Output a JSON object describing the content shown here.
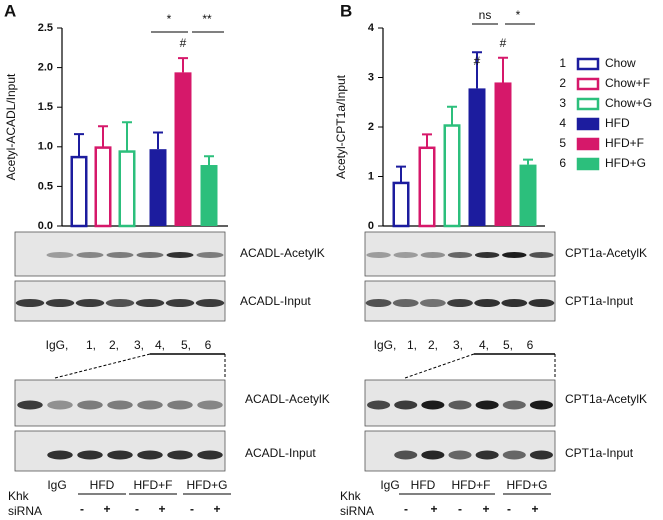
{
  "chart_data": [
    {
      "type": "bar",
      "panel": "A",
      "ylabel": "Acetyl-ACADL/Input",
      "ylim": [
        0,
        2.5
      ],
      "yticks": [
        {
          "value": 0,
          "label": "0.0"
        },
        0.5,
        {
          "value": 1,
          "label": "1.0"
        },
        1.5,
        {
          "value": 2,
          "label": "2.0"
        },
        2.5
      ],
      "values": [
        0.87,
        0.99,
        0.94,
        0.97,
        1.94,
        0.77
      ],
      "errors": [
        0.29,
        0.27,
        0.37,
        0.21,
        0.18,
        0.11
      ],
      "colors": [
        "#1c1c9e",
        "#d6186a",
        "#2cbf7c",
        "#1c1c9e",
        "#d6186a",
        "#2cbf7c"
      ],
      "filled": [
        false,
        false,
        false,
        true,
        true,
        true
      ],
      "annotations": [
        "*",
        "**",
        "#"
      ]
    },
    {
      "type": "bar",
      "panel": "B",
      "ylabel": "Acetyl-CPT1a/Input",
      "ylim": [
        0,
        4
      ],
      "yticks": [
        0,
        1,
        2,
        3,
        4
      ],
      "values": [
        0.87,
        1.58,
        2.03,
        2.78,
        2.9,
        1.24
      ],
      "errors": [
        0.33,
        0.27,
        0.38,
        0.73,
        0.5,
        0.1
      ],
      "colors": [
        "#1c1c9e",
        "#d6186a",
        "#2cbf7c",
        "#1c1c9e",
        "#d6186a",
        "#2cbf7c"
      ],
      "filled": [
        false,
        false,
        false,
        true,
        true,
        true
      ],
      "annotations": [
        "ns",
        "*",
        "#",
        "#"
      ],
      "legend_numbers": [
        "1",
        "2",
        "3",
        "4",
        "5",
        "6"
      ],
      "legend_names": [
        "Chow",
        "Chow+F",
        "Chow+G",
        "HFD",
        "HFD+F",
        "HFD+G"
      ]
    }
  ],
  "blots": {
    "A": {
      "top_labels": [
        "ACADL-AcetylK",
        "ACADL-Input"
      ],
      "lanes": [
        "IgG,",
        "1,",
        "2,",
        "3,",
        "4,",
        "5,",
        "6"
      ],
      "bottom_labels": [
        "ACADL-AcetylK",
        "ACADL-Input"
      ],
      "groups": [
        "IgG",
        "HFD",
        "HFD+F",
        "HFD+G"
      ],
      "rows": [
        "Khk",
        "siRNA"
      ],
      "signs": [
        "-",
        "+",
        "-",
        "+",
        "-",
        "+"
      ]
    },
    "B": {
      "top_labels": [
        "CPT1a-AcetylK",
        "CPT1a-Input"
      ],
      "lanes": [
        "IgG,",
        "1,",
        "2,",
        "3,",
        "4,",
        "5,",
        "6"
      ],
      "bottom_labels": [
        "CPT1a-AcetylK",
        "CPT1a-Input"
      ],
      "groups": [
        "IgG",
        "HFD",
        "HFD+F",
        "HFD+G"
      ],
      "rows": [
        "Khk",
        "siRNA"
      ],
      "signs": [
        "-",
        "+",
        "-",
        "+",
        "-",
        "+"
      ]
    }
  }
}
